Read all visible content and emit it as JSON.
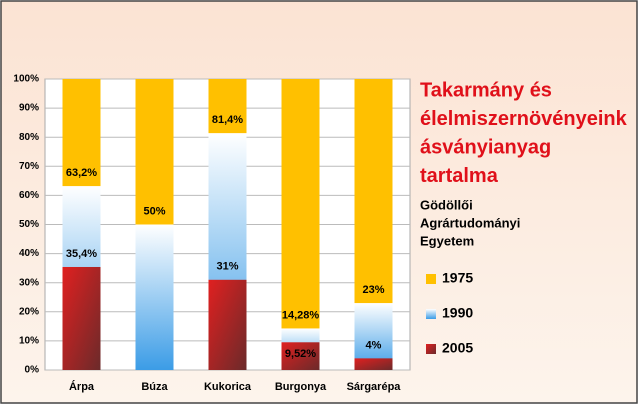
{
  "chart_data": {
    "type": "overlapping-bar",
    "title": [
      "Takarmány és",
      "élelmiszernövényeink",
      "ásványianyag",
      "tartalma"
    ],
    "subtitle": [
      "Gödöllői",
      "Agrártudományi",
      "Egyetem"
    ],
    "categories": [
      "Árpa",
      "Búza",
      "Kukorica",
      "Burgonya",
      "Sárgarépa"
    ],
    "series": [
      {
        "name": "1975",
        "color": "#ffc000",
        "values": [
          100,
          100,
          100,
          100,
          100
        ]
      },
      {
        "name": "1990",
        "color": "#3b9ce6",
        "values": [
          63.2,
          50,
          81.4,
          14.28,
          23
        ],
        "value_labels": [
          "63,2%",
          "50%",
          "81,4%",
          "14,28%",
          "23%"
        ]
      },
      {
        "name": "2005",
        "color": "#e02020",
        "values": [
          35.4,
          null,
          31,
          9.52,
          4
        ],
        "value_labels": [
          "35,4%",
          null,
          "31%",
          "9,52%",
          "4%"
        ]
      }
    ],
    "ylim": [
      0,
      100
    ],
    "yticks": [
      {
        "value": 0,
        "label": "0%"
      },
      {
        "value": 10,
        "label": "10%"
      },
      {
        "value": 20,
        "label": "20%"
      },
      {
        "value": 30,
        "label": "30%"
      },
      {
        "value": 40,
        "label": "40%"
      },
      {
        "value": 50,
        "label": "50%"
      },
      {
        "value": 60,
        "label": "60%"
      },
      {
        "value": 70,
        "label": "70%"
      },
      {
        "value": 80,
        "label": "80%"
      },
      {
        "value": 90,
        "label": "90%"
      },
      {
        "value": 100,
        "label": "100%"
      }
    ],
    "grid": true
  }
}
